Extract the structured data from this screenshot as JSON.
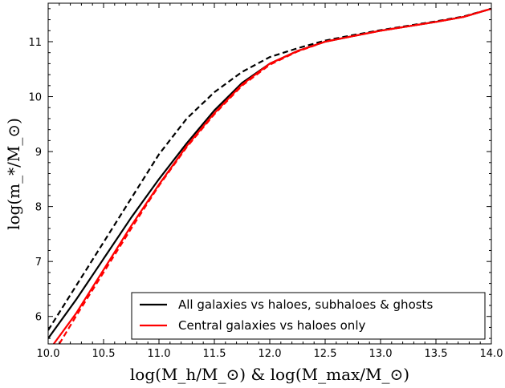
{
  "chart_data": {
    "type": "line",
    "xlabel": "log(M_h/M_⊙) & log(M_max/M_⊙)",
    "ylabel": "log(m_*/M_⊙)",
    "xlim": [
      10.0,
      14.0
    ],
    "ylim": [
      5.5,
      11.7
    ],
    "xticks": [
      10.0,
      10.5,
      11.0,
      11.5,
      12.0,
      12.5,
      13.0,
      13.5,
      14.0
    ],
    "xtick_labels": [
      "10.0",
      "10.5",
      "11.0",
      "11.5",
      "12.0",
      "12.5",
      "13.0",
      "13.5",
      "14.0"
    ],
    "yticks": [
      6,
      7,
      8,
      9,
      10,
      11
    ],
    "ytick_labels": [
      "6",
      "7",
      "8",
      "9",
      "10",
      "11"
    ],
    "grid": false,
    "legend": "bottom-right",
    "series": [
      {
        "name": "All galaxies vs haloes, subhaloes & ghosts",
        "color": "#000000",
        "style": "solid",
        "in_legend": true,
        "x": [
          10.0,
          10.25,
          10.5,
          10.75,
          11.0,
          11.25,
          11.5,
          11.75,
          12.0,
          12.25,
          12.5,
          12.75,
          13.0,
          13.25,
          13.5,
          13.75,
          14.0
        ],
        "y": [
          5.6,
          6.3,
          7.05,
          7.8,
          8.5,
          9.15,
          9.75,
          10.25,
          10.6,
          10.83,
          11.0,
          11.1,
          11.2,
          11.28,
          11.36,
          11.45,
          11.6
        ]
      },
      {
        "name": "",
        "color": "#000000",
        "style": "dashed",
        "in_legend": false,
        "x": [
          10.0,
          10.25,
          10.5,
          10.75,
          11.0,
          11.25,
          11.5,
          11.75,
          12.0,
          12.25,
          12.5,
          12.75,
          13.0,
          13.25,
          13.5,
          13.75,
          14.0
        ],
        "y": [
          5.75,
          6.55,
          7.35,
          8.15,
          8.95,
          9.6,
          10.08,
          10.45,
          10.72,
          10.88,
          11.02,
          11.12,
          11.21,
          11.29,
          11.37,
          11.46,
          11.6
        ]
      },
      {
        "name": "Central galaxies vs haloes only",
        "color": "#ff0000",
        "style": "solid",
        "in_legend": true,
        "x": [
          10.05,
          10.25,
          10.5,
          10.75,
          11.0,
          11.25,
          11.5,
          11.75,
          12.0,
          12.25,
          12.5,
          12.75,
          13.0,
          13.25,
          13.5,
          13.75,
          14.0
        ],
        "y": [
          5.5,
          6.05,
          6.85,
          7.65,
          8.4,
          9.1,
          9.7,
          10.22,
          10.6,
          10.83,
          11.0,
          11.1,
          11.2,
          11.28,
          11.36,
          11.45,
          11.6
        ]
      },
      {
        "name": "",
        "color": "#ff0000",
        "style": "dashed",
        "in_legend": false,
        "x": [
          10.1,
          10.25,
          10.5,
          10.75,
          11.0,
          11.25,
          11.5,
          11.75,
          12.0,
          12.25,
          12.5,
          12.75,
          13.0,
          13.25,
          13.5,
          13.75,
          14.0
        ],
        "y": [
          5.5,
          6.0,
          6.8,
          7.6,
          8.38,
          9.08,
          9.68,
          10.2,
          10.58,
          10.82,
          11.0,
          11.1,
          11.2,
          11.28,
          11.36,
          11.45,
          11.6
        ]
      }
    ]
  }
}
